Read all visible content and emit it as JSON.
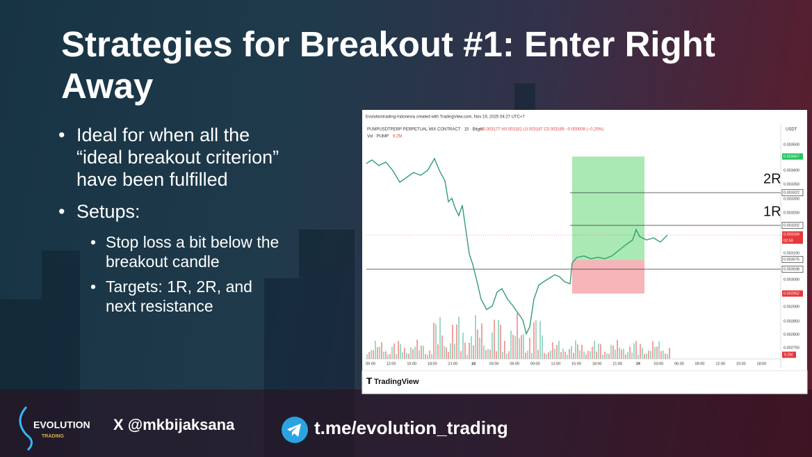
{
  "slide": {
    "title": "Strategies for Breakout #1: Enter Right Away",
    "bullets": [
      {
        "lines": [
          "Ideal for when all the",
          "“ideal breakout criterion”",
          "have been fulfilled"
        ]
      },
      {
        "lines": [
          "Setups:"
        ],
        "sub": [
          {
            "lines": [
              "Stop loss a bit below the",
              "breakout candle"
            ]
          },
          {
            "lines": [
              "Targets: 1R, 2R, and",
              "next resistance"
            ]
          }
        ]
      }
    ]
  },
  "chart_screenshot": {
    "header": "Evolutiontrading-Indonesia created with TradingView.com, Nov 19, 2025 04:27 UTC+7",
    "symbol": "PUMPUSDTPERP PERPETUAL MIX CONTRACT · 15 · Bitget",
    "ohlc": "O0.003177 H0.003181 L0.003167 C0.003169 −0.000008 (−0.25%)",
    "volume_label": "Vol · PUMP",
    "volume_value": "9.2M",
    "currency": "USDT",
    "price_labels": [
      "0.003500",
      "0.003457",
      "0.003400",
      "0.003350",
      "0.003322",
      "0.003300",
      "0.003250",
      "0.003202",
      "0.003169",
      "02:58",
      "0.003100",
      "0.003075",
      "0.003038",
      "0.003000",
      "0.002952",
      "0.002900",
      "0.002850",
      "0.002800",
      "0.002750"
    ],
    "time_labels": [
      "09:00",
      "12:00",
      "15:00",
      "18:00",
      "21:00",
      "18",
      "03:00",
      "06:00",
      "09:00",
      "12:00",
      "15:00",
      "18:00",
      "21:00",
      "19",
      "03:00",
      "06:00",
      "09:00",
      "12:00",
      "15:00",
      "18:00"
    ],
    "annotations": [
      "2R",
      "1R"
    ],
    "brand": "TradingView"
  },
  "footer": {
    "logo": "EVOLUTION",
    "logo_sub": "TRADING",
    "x_handle": "X @mkbijaksana",
    "telegram": "t.me/evolution_trading"
  }
}
